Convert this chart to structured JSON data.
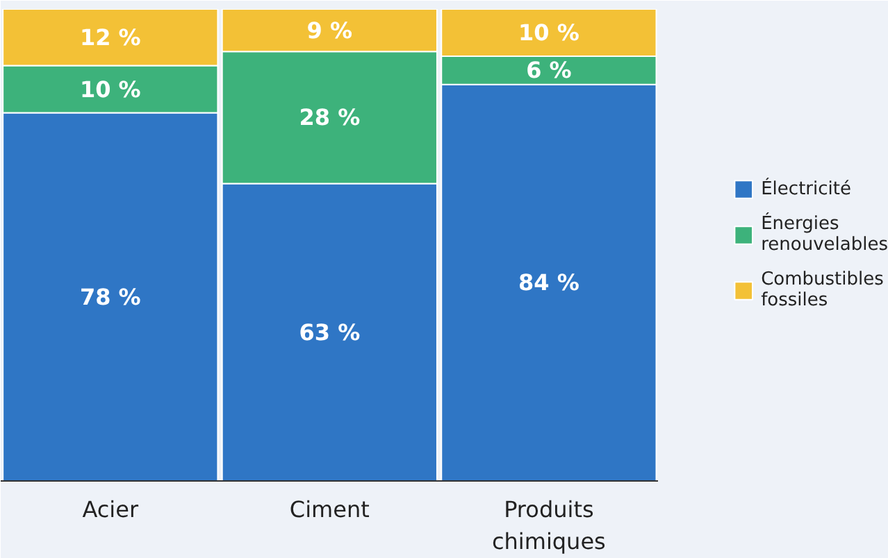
{
  "chart_data": {
    "type": "bar",
    "stacked": true,
    "categories": [
      "Acier",
      "Ciment",
      "Produits chimiques"
    ],
    "series": [
      {
        "name": "Électricité",
        "color": "#2f76c5",
        "values": [
          78,
          63,
          84
        ],
        "value_labels": [
          "78 %",
          "63 %",
          "84 %"
        ]
      },
      {
        "name": "Énergies renouvelables",
        "color": "#3db27b",
        "values": [
          10,
          28,
          6
        ],
        "value_labels": [
          "10 %",
          "28 %",
          "6 %"
        ]
      },
      {
        "name": "Combustibles fossiles",
        "color": "#f3c136",
        "values": [
          12,
          9,
          10
        ],
        "value_labels": [
          "12 %",
          "9 %",
          "10 %"
        ]
      }
    ],
    "ylim": [
      0,
      100
    ],
    "tick_labels": "x",
    "grid": false,
    "legend": "right"
  }
}
